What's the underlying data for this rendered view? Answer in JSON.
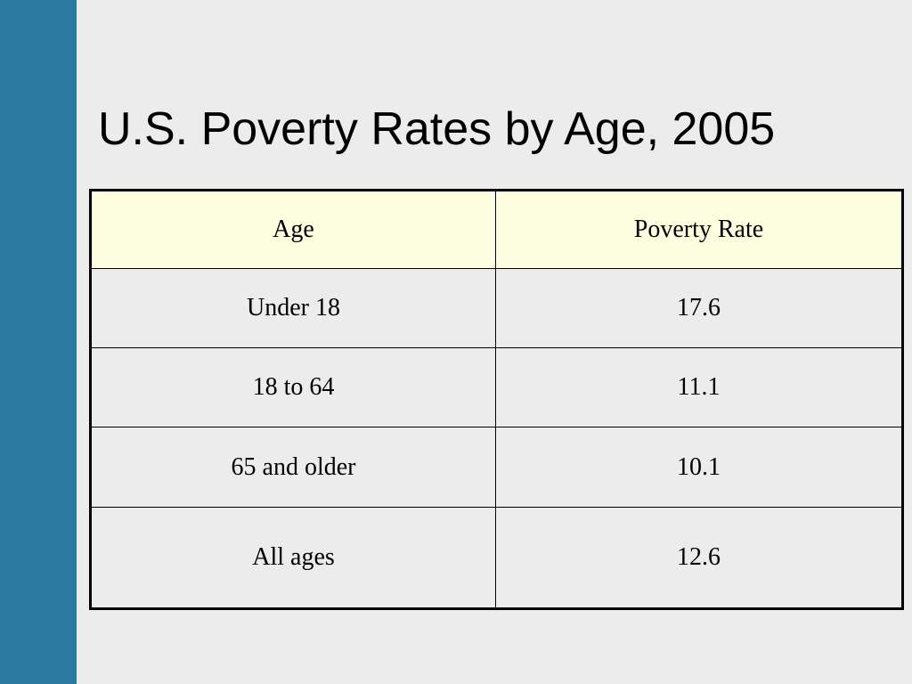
{
  "title": "U.S. Poverty Rates by Age, 2005",
  "colors": {
    "side_bar": "#2a79a1",
    "background": "#ececec",
    "header_fill": "#fdfde0"
  },
  "table": {
    "headers": [
      "Age",
      "Poverty Rate"
    ],
    "rows": [
      [
        "Under 18",
        "17.6"
      ],
      [
        "18 to 64",
        "11.1"
      ],
      [
        "65 and older",
        "10.1"
      ],
      [
        "All ages",
        "12.6"
      ]
    ]
  }
}
